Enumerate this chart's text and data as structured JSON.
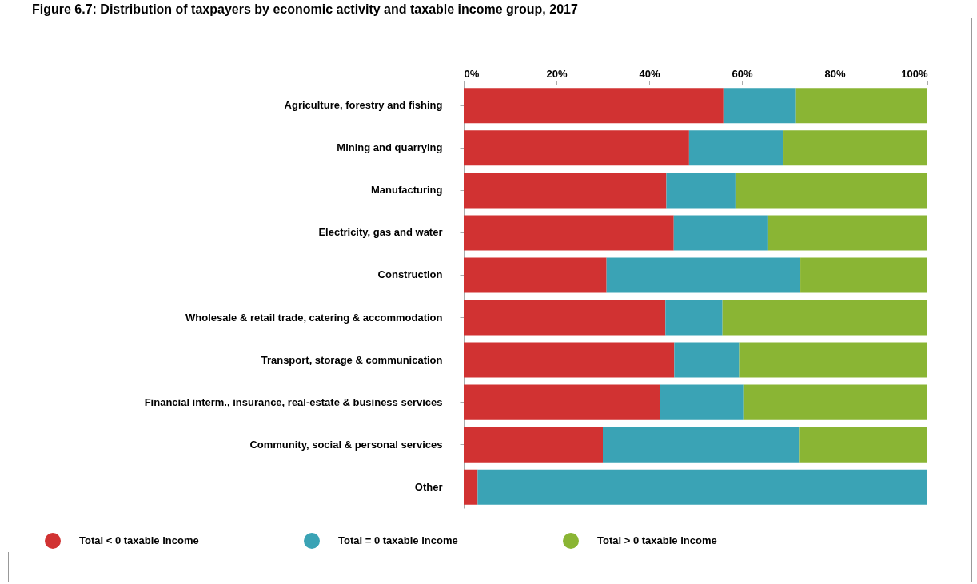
{
  "chart_data": {
    "type": "bar",
    "title": "Figure 6.7: Distribution of taxpayers by economic activity and taxable income group, 2017",
    "orientation": "horizontal",
    "stacked": true,
    "categories": [
      "Agriculture, forestry and fishing",
      "Mining and quarrying",
      "Manufacturing",
      "Electricity, gas and water",
      "Construction",
      "Wholesale & retail trade, catering & accommodation",
      "Transport, storage & communication",
      "Financial interm., insurance, real-estate & business services",
      "Community, social & personal services",
      "Other"
    ],
    "series": [
      {
        "name": "Total < 0 taxable income",
        "color": "#d13232",
        "values": [
          56.0,
          48.6,
          43.7,
          45.3,
          30.8,
          43.5,
          45.4,
          42.3,
          30.0,
          3.0
        ]
      },
      {
        "name": "Total = 0 taxable income",
        "color": "#3aa3b5",
        "values": [
          15.5,
          20.2,
          14.9,
          20.2,
          41.8,
          12.3,
          14.0,
          18.0,
          42.3,
          97.0
        ]
      },
      {
        "name": "Total > 0 taxable income",
        "color": "#8ab534",
        "values": [
          28.5,
          31.2,
          41.4,
          34.5,
          27.4,
          44.2,
          40.6,
          39.7,
          27.7,
          0
        ]
      }
    ],
    "xlim": [
      0,
      100
    ],
    "xticks": [
      {
        "value": 0,
        "label": "0%"
      },
      {
        "value": 20,
        "label": "20%"
      },
      {
        "value": 40,
        "label": "40%"
      },
      {
        "value": 60,
        "label": "60%"
      },
      {
        "value": 80,
        "label": "80%"
      },
      {
        "value": 100,
        "label": "100%"
      }
    ],
    "grid": false,
    "legend": "bottom"
  }
}
